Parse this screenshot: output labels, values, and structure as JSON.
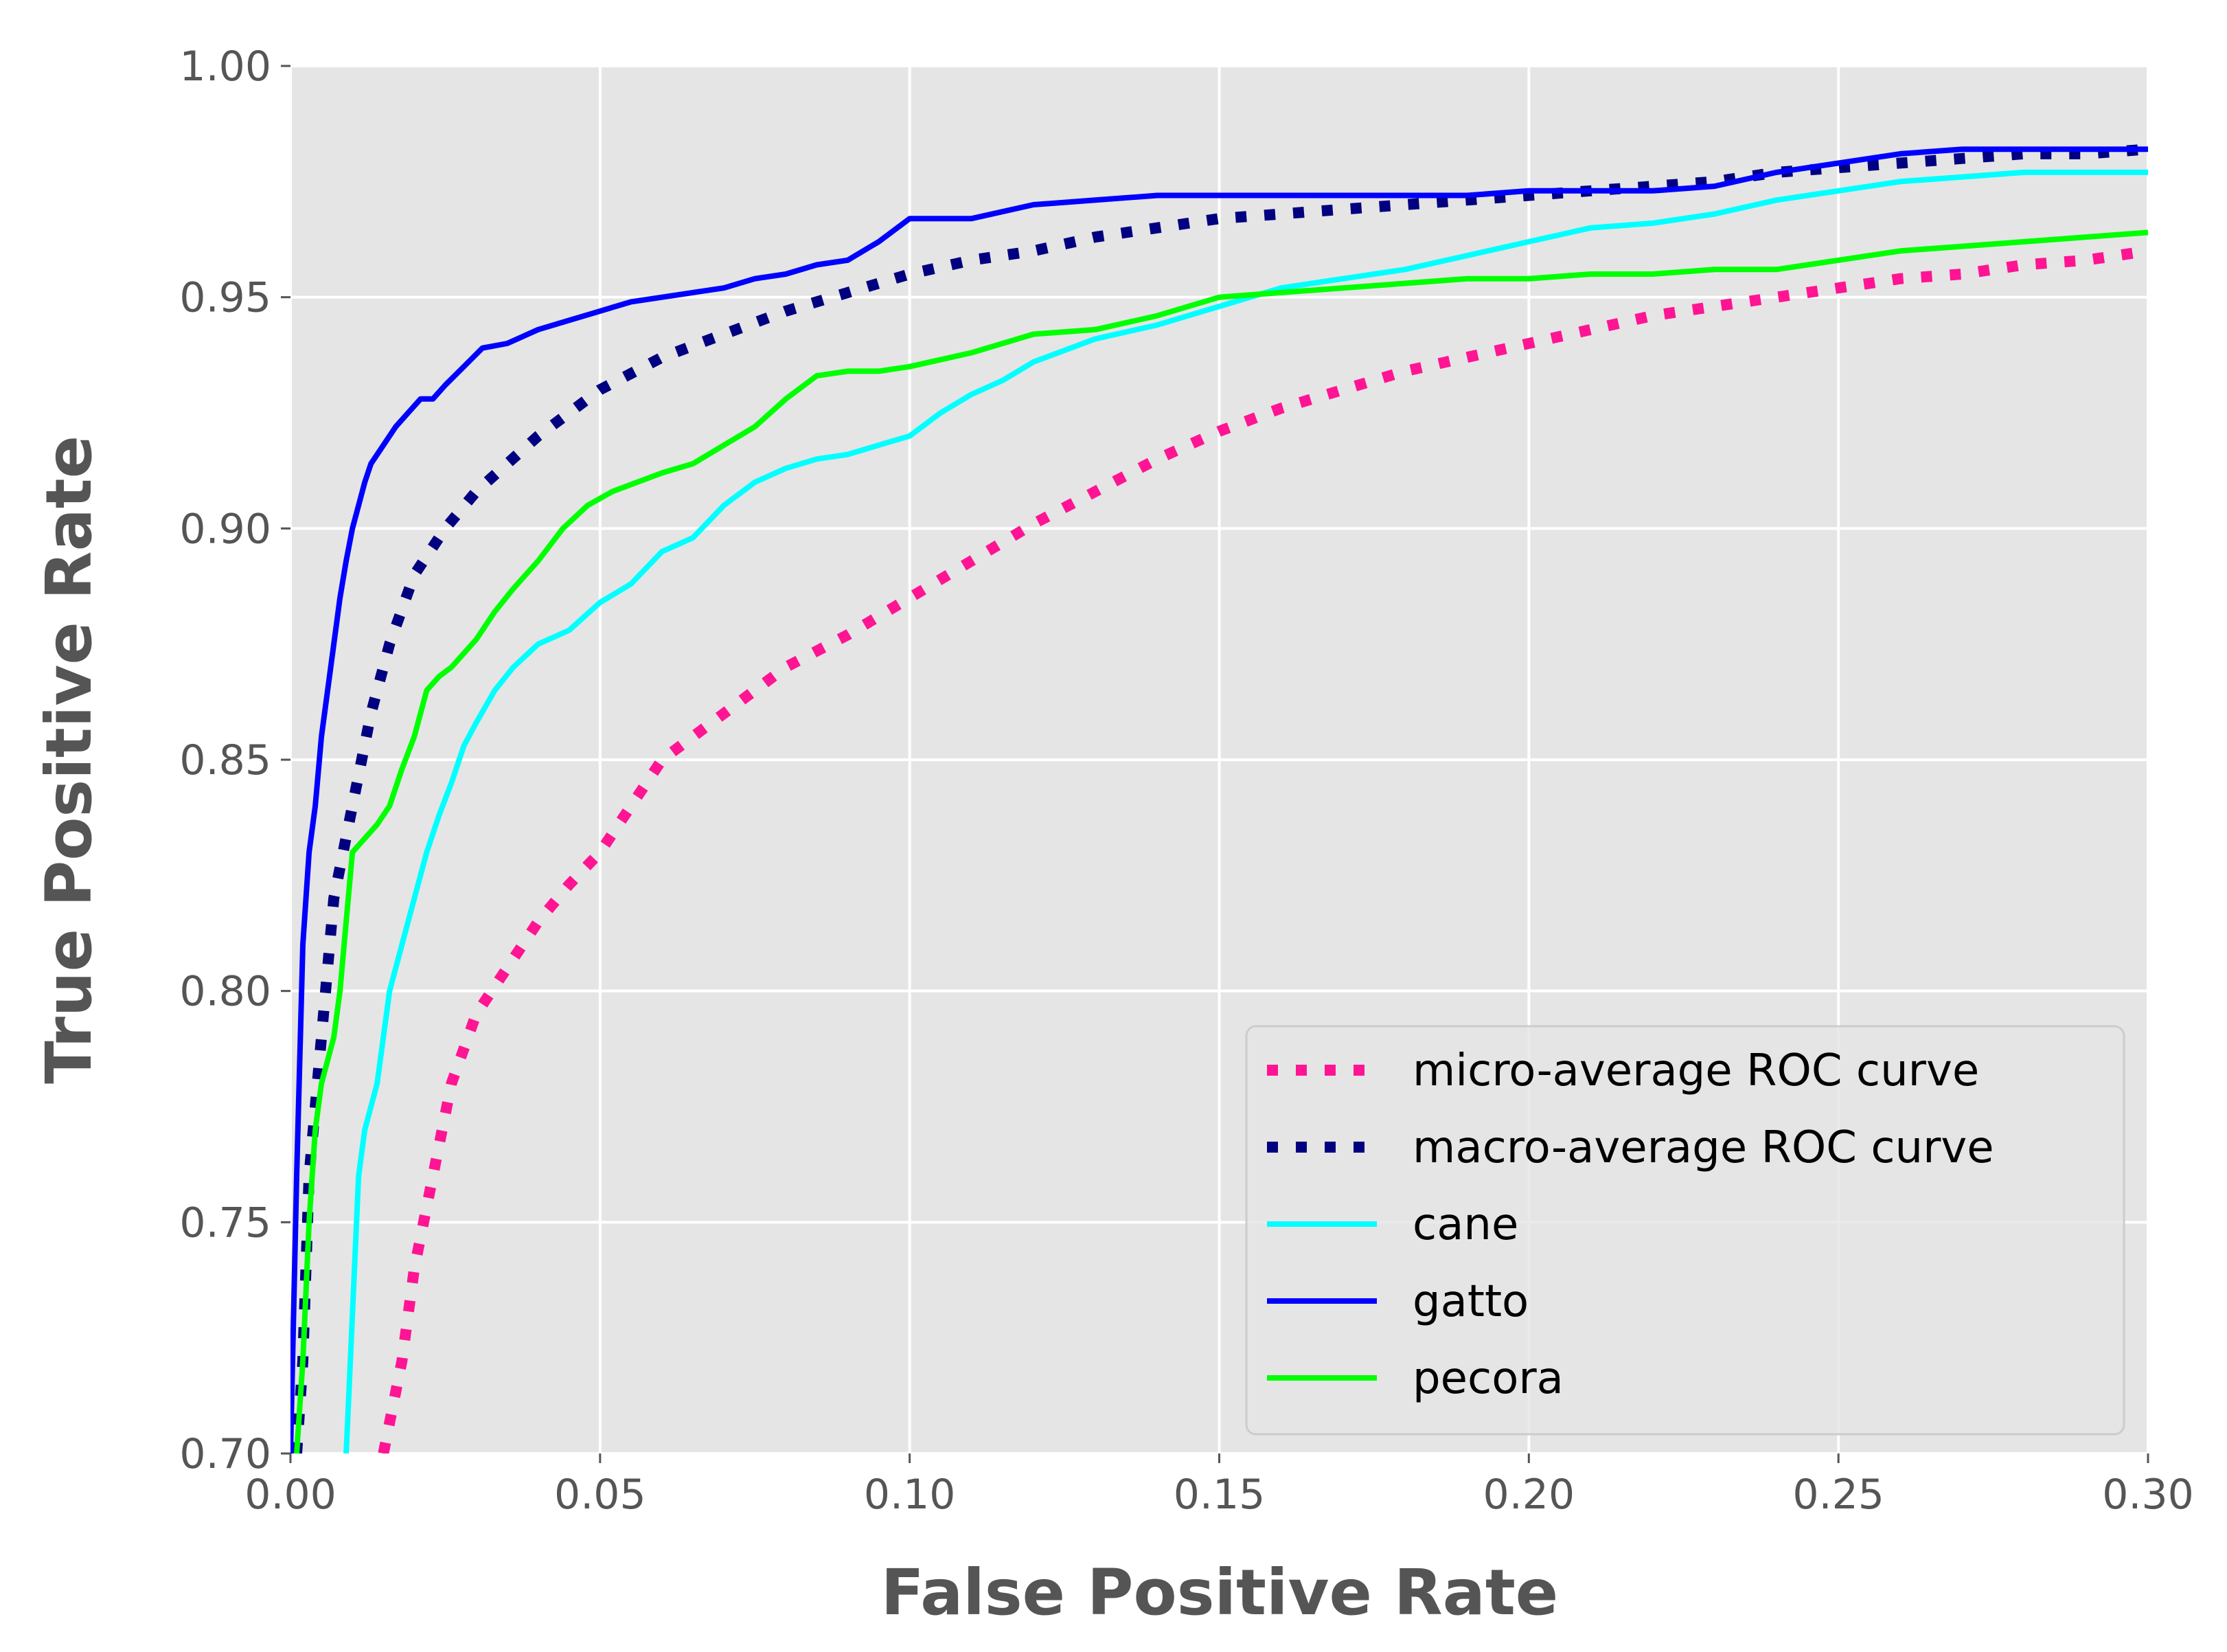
{
  "chart_data": {
    "type": "line",
    "xlabel": "False Positive Rate",
    "ylabel": "True Positive Rate",
    "xlim": [
      0.0,
      0.3
    ],
    "ylim": [
      0.7,
      1.0
    ],
    "xticks": [
      "0.00",
      "0.05",
      "0.10",
      "0.15",
      "0.20",
      "0.25",
      "0.30"
    ],
    "yticks": [
      "0.70",
      "0.75",
      "0.80",
      "0.85",
      "0.90",
      "0.95",
      "1.00"
    ],
    "grid": true,
    "legend_position": "lower-right",
    "series": [
      {
        "name": "micro-average ROC curve",
        "color": "#ff1493",
        "style": "dotted",
        "x": [
          0.015,
          0.018,
          0.02,
          0.023,
          0.026,
          0.03,
          0.035,
          0.04,
          0.045,
          0.05,
          0.055,
          0.06,
          0.07,
          0.08,
          0.09,
          0.1,
          0.11,
          0.12,
          0.13,
          0.14,
          0.15,
          0.16,
          0.17,
          0.18,
          0.19,
          0.2,
          0.21,
          0.22,
          0.23,
          0.24,
          0.25,
          0.26,
          0.27,
          0.28,
          0.29,
          0.3
        ],
        "y": [
          0.7,
          0.72,
          0.74,
          0.76,
          0.78,
          0.795,
          0.805,
          0.815,
          0.823,
          0.83,
          0.84,
          0.85,
          0.86,
          0.87,
          0.877,
          0.885,
          0.893,
          0.901,
          0.908,
          0.915,
          0.921,
          0.926,
          0.93,
          0.934,
          0.937,
          0.94,
          0.943,
          0.946,
          0.948,
          0.95,
          0.952,
          0.954,
          0.955,
          0.957,
          0.958,
          0.96
        ]
      },
      {
        "name": "macro-average ROC curve",
        "color": "#000080",
        "style": "dotted",
        "x": [
          0.001,
          0.002,
          0.003,
          0.005,
          0.007,
          0.01,
          0.013,
          0.016,
          0.02,
          0.025,
          0.03,
          0.035,
          0.04,
          0.045,
          0.05,
          0.06,
          0.07,
          0.08,
          0.09,
          0.1,
          0.11,
          0.12,
          0.13,
          0.14,
          0.15,
          0.16,
          0.17,
          0.18,
          0.19,
          0.2,
          0.21,
          0.22,
          0.23,
          0.24,
          0.25,
          0.26,
          0.27,
          0.28,
          0.29,
          0.3
        ],
        "y": [
          0.7,
          0.72,
          0.76,
          0.79,
          0.82,
          0.84,
          0.86,
          0.875,
          0.89,
          0.9,
          0.908,
          0.914,
          0.92,
          0.925,
          0.93,
          0.937,
          0.942,
          0.947,
          0.951,
          0.955,
          0.958,
          0.96,
          0.963,
          0.965,
          0.967,
          0.968,
          0.969,
          0.97,
          0.971,
          0.972,
          0.973,
          0.974,
          0.975,
          0.977,
          0.978,
          0.979,
          0.98,
          0.981,
          0.981,
          0.982
        ]
      },
      {
        "name": "cane",
        "color": "#00ffff",
        "style": "solid",
        "x": [
          0.009,
          0.01,
          0.011,
          0.012,
          0.014,
          0.016,
          0.018,
          0.02,
          0.022,
          0.024,
          0.026,
          0.028,
          0.03,
          0.033,
          0.036,
          0.04,
          0.045,
          0.05,
          0.055,
          0.06,
          0.065,
          0.07,
          0.075,
          0.08,
          0.085,
          0.09,
          0.095,
          0.1,
          0.105,
          0.11,
          0.115,
          0.12,
          0.13,
          0.14,
          0.15,
          0.16,
          0.17,
          0.18,
          0.19,
          0.2,
          0.21,
          0.22,
          0.23,
          0.24,
          0.25,
          0.26,
          0.27,
          0.28,
          0.29,
          0.3
        ],
        "y": [
          0.7,
          0.73,
          0.76,
          0.77,
          0.78,
          0.8,
          0.81,
          0.82,
          0.83,
          0.838,
          0.845,
          0.853,
          0.858,
          0.865,
          0.87,
          0.875,
          0.878,
          0.884,
          0.888,
          0.895,
          0.898,
          0.905,
          0.91,
          0.913,
          0.915,
          0.916,
          0.918,
          0.92,
          0.925,
          0.929,
          0.932,
          0.936,
          0.941,
          0.944,
          0.948,
          0.952,
          0.954,
          0.956,
          0.959,
          0.962,
          0.965,
          0.966,
          0.968,
          0.971,
          0.973,
          0.975,
          0.976,
          0.977,
          0.977,
          0.977
        ]
      },
      {
        "name": "gatto",
        "color": "#0000ff",
        "style": "solid",
        "x": [
          0.0,
          0.001,
          0.002,
          0.003,
          0.004,
          0.005,
          0.006,
          0.007,
          0.008,
          0.009,
          0.01,
          0.011,
          0.012,
          0.013,
          0.015,
          0.017,
          0.019,
          0.021,
          0.023,
          0.025,
          0.028,
          0.031,
          0.035,
          0.04,
          0.045,
          0.05,
          0.055,
          0.06,
          0.065,
          0.07,
          0.075,
          0.08,
          0.085,
          0.09,
          0.095,
          0.1,
          0.11,
          0.12,
          0.13,
          0.14,
          0.15,
          0.16,
          0.17,
          0.18,
          0.19,
          0.2,
          0.21,
          0.22,
          0.23,
          0.24,
          0.25,
          0.26,
          0.27,
          0.28,
          0.29,
          0.3
        ],
        "y": [
          0.7,
          0.76,
          0.81,
          0.83,
          0.84,
          0.855,
          0.865,
          0.875,
          0.885,
          0.893,
          0.9,
          0.905,
          0.91,
          0.914,
          0.918,
          0.922,
          0.925,
          0.928,
          0.928,
          0.931,
          0.935,
          0.939,
          0.94,
          0.943,
          0.945,
          0.947,
          0.949,
          0.95,
          0.951,
          0.952,
          0.954,
          0.955,
          0.957,
          0.958,
          0.962,
          0.967,
          0.967,
          0.97,
          0.971,
          0.972,
          0.972,
          0.972,
          0.972,
          0.972,
          0.972,
          0.973,
          0.973,
          0.973,
          0.974,
          0.977,
          0.979,
          0.981,
          0.982,
          0.982,
          0.982,
          0.982
        ]
      },
      {
        "name": "pecora",
        "color": "#00ff00",
        "style": "solid",
        "x": [
          0.001,
          0.002,
          0.003,
          0.004,
          0.005,
          0.006,
          0.007,
          0.008,
          0.009,
          0.01,
          0.012,
          0.014,
          0.016,
          0.018,
          0.02,
          0.022,
          0.024,
          0.026,
          0.028,
          0.03,
          0.033,
          0.036,
          0.04,
          0.044,
          0.048,
          0.052,
          0.056,
          0.06,
          0.065,
          0.07,
          0.075,
          0.08,
          0.085,
          0.09,
          0.095,
          0.1,
          0.11,
          0.12,
          0.13,
          0.14,
          0.15,
          0.16,
          0.17,
          0.18,
          0.19,
          0.2,
          0.21,
          0.22,
          0.23,
          0.24,
          0.25,
          0.26,
          0.27,
          0.28,
          0.29,
          0.3
        ],
        "y": [
          0.7,
          0.72,
          0.75,
          0.77,
          0.78,
          0.785,
          0.79,
          0.8,
          0.815,
          0.83,
          0.833,
          0.836,
          0.84,
          0.848,
          0.855,
          0.865,
          0.868,
          0.87,
          0.873,
          0.876,
          0.882,
          0.887,
          0.893,
          0.9,
          0.905,
          0.908,
          0.91,
          0.912,
          0.914,
          0.918,
          0.922,
          0.928,
          0.933,
          0.934,
          0.934,
          0.935,
          0.938,
          0.942,
          0.943,
          0.946,
          0.95,
          0.951,
          0.952,
          0.953,
          0.954,
          0.954,
          0.955,
          0.955,
          0.956,
          0.956,
          0.958,
          0.96,
          0.961,
          0.962,
          0.963,
          0.964
        ]
      }
    ]
  }
}
